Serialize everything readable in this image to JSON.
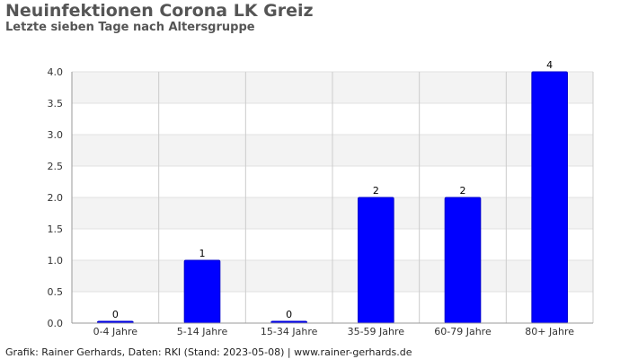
{
  "chart_data": {
    "type": "bar",
    "title": "Neuinfektionen Corona LK Greiz",
    "subtitle": "Letzte sieben Tage nach Altersgruppe",
    "categories": [
      "0-4 Jahre",
      "5-14 Jahre",
      "15-34 Jahre",
      "35-59 Jahre",
      "60-79 Jahre",
      "80+ Jahre"
    ],
    "values": [
      0,
      1,
      0,
      2,
      2,
      4
    ],
    "data_labels": [
      "0",
      "1",
      "0",
      "2",
      "2",
      "4"
    ],
    "ylim": [
      0,
      4
    ],
    "yticks": [
      "0.0",
      "0.5",
      "1.0",
      "1.5",
      "2.0",
      "2.5",
      "3.0",
      "3.5",
      "4.0"
    ],
    "xlabel": "",
    "ylabel": "",
    "grid": true,
    "legend": "none",
    "bar_color": "#0000ff",
    "band_color": "#f3f3f3"
  },
  "footer": "Grafik: Rainer Gerhards, Daten: RKI (Stand: 2023-05-08) | www.rainer-gerhards.de"
}
